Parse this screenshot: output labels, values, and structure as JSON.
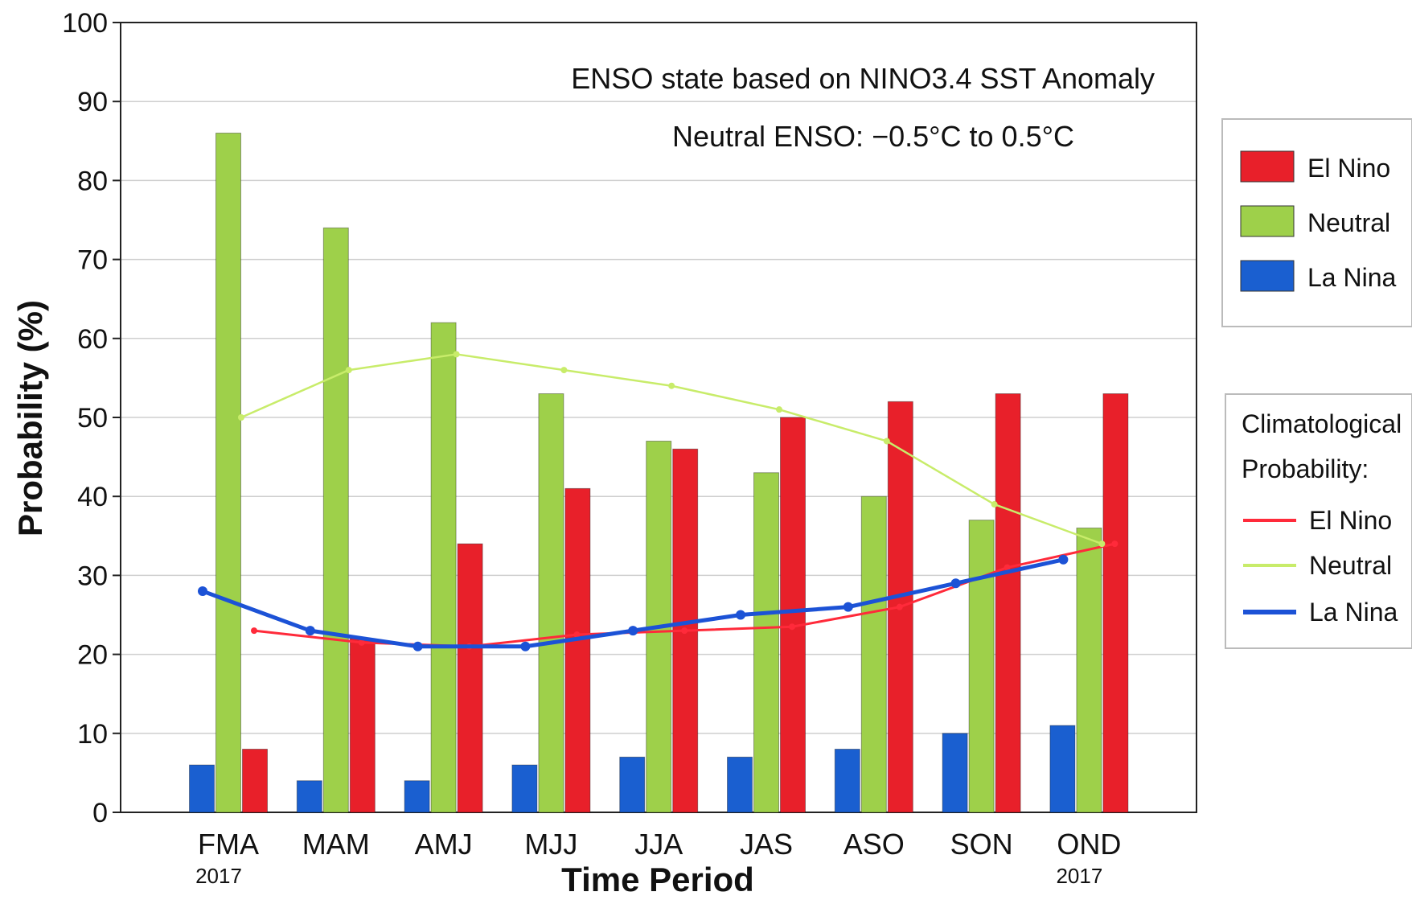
{
  "chart_data": {
    "type": "bar",
    "ylabel": "Probability (%)",
    "xlabel": "Time Period",
    "ylim": [
      0,
      100
    ],
    "yticks": [
      0,
      10,
      20,
      30,
      40,
      50,
      60,
      70,
      80,
      90,
      100
    ],
    "categories": [
      "FMA",
      "MAM",
      "AMJ",
      "MJJ",
      "JJA",
      "JAS",
      "ASO",
      "SON",
      "OND"
    ],
    "category_years": [
      "2017",
      "",
      "",
      "",
      "",
      "",
      "",
      "",
      "2017"
    ],
    "annotations": [
      "ENSO state based on NINO3.4 SST Anomaly",
      "Neutral ENSO: −0.5°C to 0.5°C"
    ],
    "grid": "horizontal",
    "series": [
      {
        "name": "La Nina",
        "color": "#1a5fd0",
        "values": [
          6,
          4,
          4,
          6,
          7,
          7,
          8,
          10,
          11
        ]
      },
      {
        "name": "Neutral",
        "color": "#9ed04a",
        "values": [
          86,
          74,
          62,
          53,
          47,
          43,
          40,
          37,
          36
        ]
      },
      {
        "name": "El Nino",
        "color": "#e8202a",
        "values": [
          8,
          22,
          34,
          41,
          46,
          50,
          52,
          53,
          53
        ]
      }
    ],
    "climatology": {
      "title": "Climatological Probability:",
      "lines": [
        {
          "name": "El Nino",
          "color": "#ff2a3a",
          "values": [
            23,
            21.5,
            21,
            22.5,
            23,
            23.5,
            26,
            31,
            34
          ]
        },
        {
          "name": "Neutral",
          "color": "#c8ec6a",
          "values": [
            50,
            56,
            58,
            56,
            54,
            51,
            47,
            39,
            34
          ]
        },
        {
          "name": "La Nina",
          "color": "#1c52d6",
          "values": [
            28,
            23,
            21,
            21,
            23,
            25,
            26,
            29,
            32
          ]
        }
      ]
    },
    "legend_position": "right"
  }
}
